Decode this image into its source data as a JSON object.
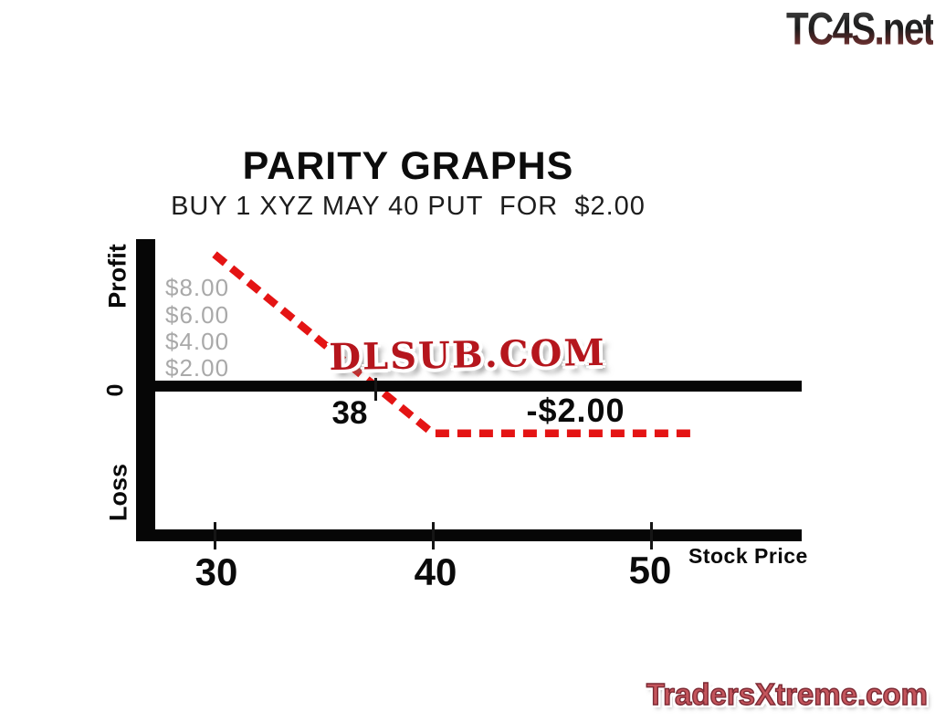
{
  "watermarks": {
    "top_right": "TC4S.net",
    "center": "DLSUB.COM",
    "bottom_right": "TradersXtreme.com"
  },
  "chart": {
    "title": "PARITY GRAPHS",
    "subtitle": "BUY 1 XYZ MAY 40 PUT  FOR  $2.00",
    "y_axis": {
      "profit_label": "Profit",
      "zero_label": "0",
      "loss_label": "Loss",
      "gridline_labels": [
        "$8.00",
        "$6.00",
        "$4.00",
        "$2.00"
      ]
    },
    "x_axis": {
      "label": "Stock Price",
      "ticks": [
        "30",
        "40",
        "50"
      ]
    },
    "annotations": {
      "breakeven": "38",
      "max_loss": "-$2.00"
    }
  },
  "chart_data": {
    "type": "line",
    "title": "PARITY GRAPHS",
    "subtitle": "BUY 1 XYZ MAY 40 PUT FOR $2.00",
    "xlabel": "Stock Price",
    "ylabel_zones": [
      "Profit",
      "0",
      "Loss"
    ],
    "x_ticks": [
      30,
      40,
      50
    ],
    "profit_axis_labels": [
      "$8.00",
      "$6.00",
      "$4.00",
      "$2.00"
    ],
    "series": [
      {
        "name": "long-put-payoff-at-expiration",
        "style": "dashed",
        "color": "#e41414",
        "points": [
          [
            30,
            8
          ],
          [
            40,
            -2
          ],
          [
            52,
            -2
          ]
        ]
      }
    ],
    "breakeven_x": 38,
    "max_loss_y": -2,
    "grid": false,
    "legend": false
  },
  "colors": {
    "payoff_red": "#e41414",
    "dlsub_red": "#b5161d",
    "tradersxtreme_red": "#c4555c",
    "axis_black": "#060606",
    "gridline_label_gray": "#a9a9a9"
  }
}
